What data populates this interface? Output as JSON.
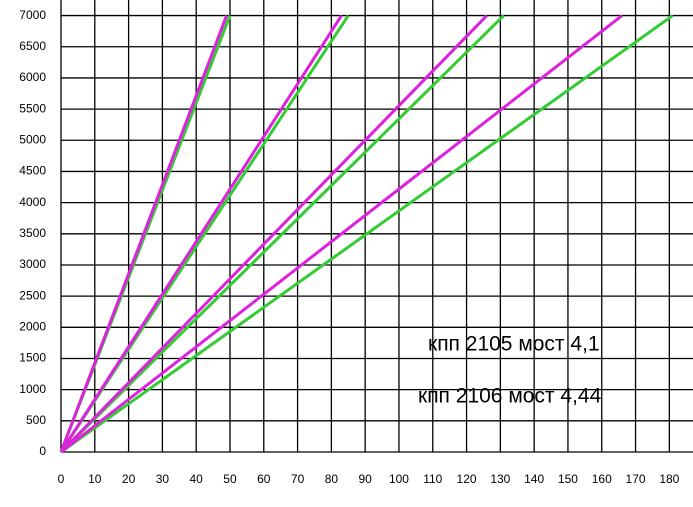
{
  "chart_data": {
    "type": "line",
    "xlim": [
      0,
      187
    ],
    "ylim": [
      0,
      7250
    ],
    "xticks": [
      0,
      10,
      20,
      30,
      40,
      50,
      60,
      70,
      80,
      90,
      100,
      110,
      120,
      130,
      140,
      150,
      160,
      170,
      180
    ],
    "yticks": [
      0,
      500,
      1000,
      1500,
      2000,
      2500,
      3000,
      3500,
      4000,
      4500,
      5000,
      5500,
      6000,
      6500,
      7000
    ],
    "grid": true,
    "series": [
      {
        "name": "кпп 2105 мост 4,1",
        "color": "#33cc33",
        "lines": [
          {
            "x": [
              0,
              50
            ],
            "values": [
              0,
              7000
            ]
          },
          {
            "x": [
              0,
              85
            ],
            "values": [
              0,
              7000
            ]
          },
          {
            "x": [
              0,
              131
            ],
            "values": [
              0,
              7000
            ]
          },
          {
            "x": [
              0,
              181
            ],
            "values": [
              0,
              7000
            ]
          }
        ]
      },
      {
        "name": "кпп 2106 мост 4,44",
        "color": "#dd22dd",
        "lines": [
          {
            "x": [
              0,
              49
            ],
            "values": [
              0,
              7000
            ]
          },
          {
            "x": [
              0,
              83
            ],
            "values": [
              0,
              7000
            ]
          },
          {
            "x": [
              0,
              126
            ],
            "values": [
              0,
              7000
            ]
          },
          {
            "x": [
              0,
              166
            ],
            "values": [
              0,
              7000
            ]
          }
        ]
      }
    ]
  }
}
